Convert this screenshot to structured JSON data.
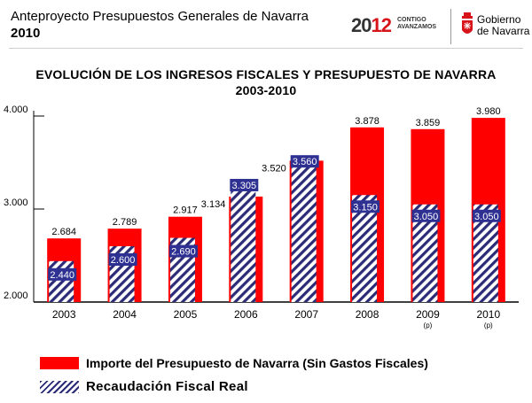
{
  "header": {
    "title": "Anteproyecto Presupuestos Generales de Navarra",
    "year": "2010",
    "brand_year_prefix": "20",
    "brand_year_accent": "12",
    "brand_sub_1": "CONTIGO",
    "brand_sub_2": "AVANZAMOS",
    "gov_line1": "Gobierno",
    "gov_line2": "de Navarra"
  },
  "colors": {
    "budget_red": "#ff0000",
    "hatch_navy": "#2b2b78",
    "label_box": "#2e3192",
    "brand_red": "#d7141a"
  },
  "chart_data": {
    "type": "bar",
    "title_line1": "EVOLUCIÓN DE LOS INGRESOS FISCALES Y PRESUPUESTO DE NAVARRA",
    "title_line2": "2003-2010",
    "categories": [
      "2003",
      "2004",
      "2005",
      "2006",
      "2007",
      "2008",
      "2009",
      "2010"
    ],
    "category_notes": [
      "",
      "",
      "",
      "",
      "",
      "",
      "(p)",
      "(p)"
    ],
    "ylim": [
      2000,
      4000
    ],
    "yticks": [
      2000,
      3000,
      4000
    ],
    "ytick_labels": [
      "2.000",
      "3.000",
      "4.000"
    ],
    "series": [
      {
        "name": "Importe del Presupuesto de Navarra (Sin Gastos Fiscales)",
        "style": "solid-red",
        "values": [
          2684,
          2789,
          2917,
          3134,
          3520,
          3878,
          3859,
          3980
        ],
        "labels": [
          "2.684",
          "2.789",
          "2.917",
          "3.134",
          "3.520",
          "3.878",
          "3.859",
          "3.980"
        ]
      },
      {
        "name": "Recaudación Fiscal Real",
        "style": "hatched-navy",
        "values": [
          2440,
          2600,
          2690,
          3305,
          3560,
          3150,
          3050,
          3050
        ],
        "labels": [
          "2.440",
          "2.600",
          "2.690",
          "3.305",
          "3.560",
          "3.150",
          "3.050",
          "3.050"
        ]
      }
    ],
    "legend": {
      "budget": "Importe del Presupuesto de Navarra (Sin Gastos Fiscales)",
      "real": "Recaudación Fiscal Real"
    }
  }
}
